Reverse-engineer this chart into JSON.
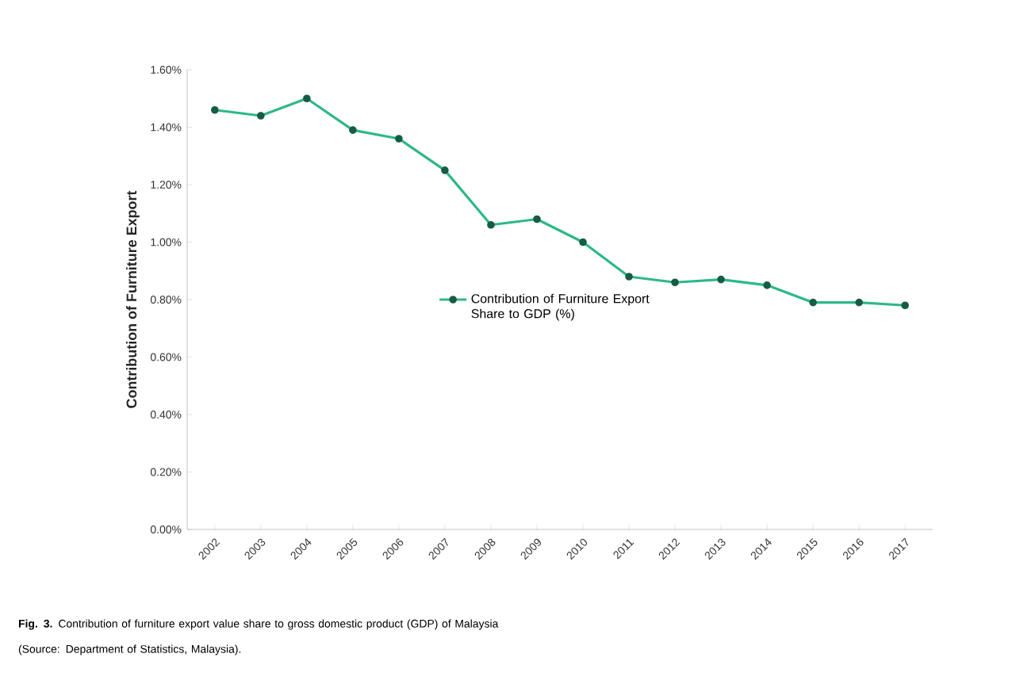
{
  "chart_data": {
    "type": "line",
    "ylabel": "Contribution of Furniture Export",
    "categories": [
      "2002",
      "2003",
      "2004",
      "2005",
      "2006",
      "2007",
      "2008",
      "2009",
      "2010",
      "2011",
      "2012",
      "2013",
      "2014",
      "2015",
      "2016",
      "2017"
    ],
    "series": [
      {
        "name": "Contribution of Furniture Export Share to GDP (%)",
        "color": "#2eb88a",
        "values": [
          1.46,
          1.44,
          1.5,
          1.39,
          1.36,
          1.25,
          1.06,
          1.08,
          1.0,
          0.88,
          0.86,
          0.87,
          0.85,
          0.79,
          0.79,
          0.78
        ]
      }
    ],
    "ylim": [
      0,
      1.6
    ],
    "yticks": [
      {
        "value": 0,
        "label": "0.00%"
      },
      {
        "value": 0.2,
        "label": "0.20%"
      },
      {
        "value": 0.4,
        "label": "0.40%"
      },
      {
        "value": 0.6,
        "label": "0.60%"
      },
      {
        "value": 0.8,
        "label": "0.80%"
      },
      {
        "value": 1.0,
        "label": "1.00%"
      },
      {
        "value": 1.2,
        "label": "1.20%"
      },
      {
        "value": 1.4,
        "label": "1.40%"
      },
      {
        "value": 1.6,
        "label": "1.60%"
      }
    ],
    "grid": false,
    "legend": "center",
    "marker": "circle",
    "line_style": "solid",
    "annotations": [
      "**Fig. 3.** Contribution of furniture export value share to gross domestic product (GDP) of Malaysia",
      "(Source: Department of Statistics, Malaysia)."
    ]
  }
}
